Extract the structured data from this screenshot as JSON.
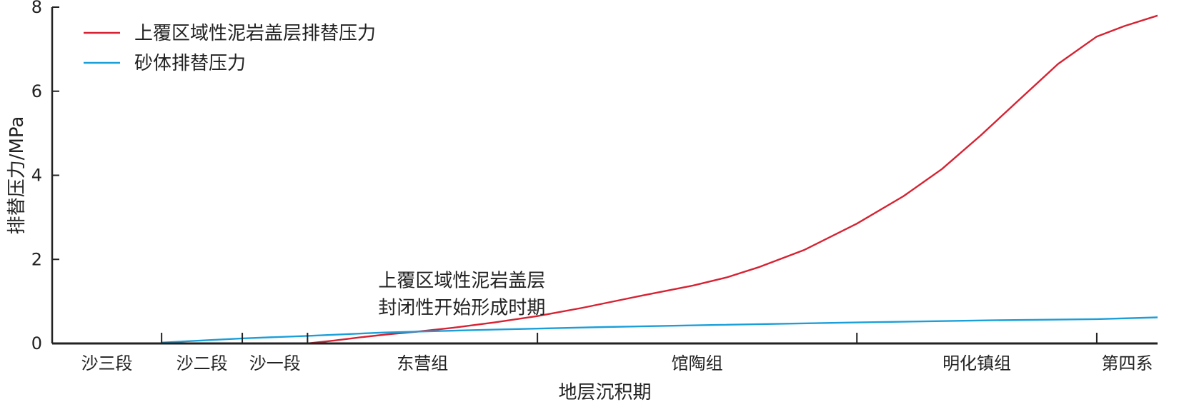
{
  "chart_data": {
    "type": "line",
    "xlabel": "地层沉积期",
    "ylabel": "排替压力/MPa",
    "ylim": [
      0,
      8
    ],
    "yticks": [
      "0",
      "2",
      "4",
      "6",
      "8"
    ],
    "xlim": [
      0,
      100
    ],
    "categories": [
      {
        "label": "沙三段",
        "start": 0,
        "end": 9.9
      },
      {
        "label": "沙二段",
        "start": 9.9,
        "end": 17.2
      },
      {
        "label": "沙一段",
        "start": 17.2,
        "end": 23.1
      },
      {
        "label": "东营组",
        "start": 23.1,
        "end": 43.9
      },
      {
        "label": "馆陶组",
        "start": 43.9,
        "end": 72.8
      },
      {
        "label": "明化镇组",
        "start": 72.8,
        "end": 94.5
      },
      {
        "label": "第四系",
        "start": 94.5,
        "end": 100
      }
    ],
    "series": [
      {
        "name": "上覆区域性泥岩盖层排替压力",
        "color": "#d62232",
        "points": [
          [
            23.1,
            0
          ],
          [
            25.5,
            0.07
          ],
          [
            28,
            0.15
          ],
          [
            30.5,
            0.22
          ],
          [
            33,
            0.28
          ],
          [
            36.5,
            0.38
          ],
          [
            40,
            0.5
          ],
          [
            43.9,
            0.65
          ],
          [
            48,
            0.85
          ],
          [
            53,
            1.12
          ],
          [
            58,
            1.38
          ],
          [
            61,
            1.57
          ],
          [
            64,
            1.82
          ],
          [
            68,
            2.22
          ],
          [
            72.8,
            2.85
          ],
          [
            77,
            3.5
          ],
          [
            80.5,
            4.15
          ],
          [
            84,
            4.95
          ],
          [
            87.5,
            5.8
          ],
          [
            91,
            6.65
          ],
          [
            94.5,
            7.3
          ],
          [
            97,
            7.55
          ],
          [
            100,
            7.8
          ]
        ]
      },
      {
        "name": "砂体排替压力",
        "color": "#1a9fd9",
        "points": [
          [
            9.9,
            0.02
          ],
          [
            17.2,
            0.12
          ],
          [
            23.1,
            0.18
          ],
          [
            30,
            0.26
          ],
          [
            40,
            0.33
          ],
          [
            50,
            0.39
          ],
          [
            60,
            0.44
          ],
          [
            72.8,
            0.5
          ],
          [
            85,
            0.55
          ],
          [
            94.5,
            0.58
          ],
          [
            100,
            0.62
          ]
        ]
      }
    ],
    "annotation": {
      "lines": [
        "上覆区域性泥岩盖层",
        "封闭性开始形成时期"
      ],
      "x": 29.5,
      "y": 1.5
    },
    "legend": {
      "position": "top-left",
      "entries": [
        "上覆区域性泥岩盖层排替压力",
        "砂体排替压力"
      ]
    },
    "grid": false
  }
}
